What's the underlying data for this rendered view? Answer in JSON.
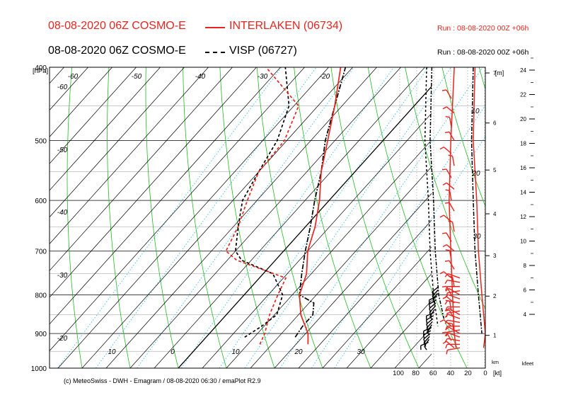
{
  "header": {
    "line1_run": "08-08-2020 06Z COSMO-E",
    "line1_station": "INTERLAKEN (06734)",
    "line1_info": "Run : 08-08-2020 00Z +06h",
    "line2_run": "08-08-2020 06Z COSMO-E",
    "line2_station": "VISP (06727)",
    "line2_info": "Run : 08-08-2020 00Z +06h"
  },
  "footer": {
    "credit": "(c) MeteoSwiss - DWH - Emagram / 08-08-2020  06:30 / emaPlot R2.9"
  },
  "colors": {
    "series_interlaken": "#e8251f",
    "series_visp": "#000000",
    "dry_adiabat": "#22bb22",
    "mixing_ratio": "#33bbee",
    "isotherm": "#000000"
  },
  "chart_data": {
    "type": "line",
    "title": "",
    "ylabel": "[hPa]",
    "pressure_levels": [
      1000,
      900,
      800,
      700,
      600,
      500,
      400
    ],
    "isotherm_labels": [
      {
        "text": "-60",
        "value": -60
      },
      {
        "text": "-50",
        "value": -50
      },
      {
        "text": "-40",
        "value": -40
      },
      {
        "text": "-30",
        "value": -30
      },
      {
        "text": "-20",
        "value": -20
      },
      {
        "text": "10",
        "value": 10
      },
      {
        "text": "20",
        "value": 20
      },
      {
        "text": "30",
        "value": 30
      }
    ],
    "adiabat_labels": [
      "-60",
      "-50",
      "-40",
      "-30",
      "-20"
    ],
    "zero_label": "0",
    "height_axis_km": {
      "unit": "[m]",
      "ticks": [
        "1",
        "2",
        "3",
        "4",
        "5",
        "6",
        "7"
      ]
    },
    "height_axis_kfeet": {
      "unit": "kfeet",
      "ticks": [
        "4",
        "6",
        "8",
        "10",
        "12",
        "14",
        "16",
        "18",
        "20",
        "22",
        "24"
      ]
    },
    "wind_axis": {
      "unit": "[kt]",
      "ticks": [
        "100",
        "80",
        "60",
        "40",
        "20",
        "0"
      ]
    },
    "wind_panel_labels": [
      "10",
      "20",
      "30"
    ],
    "km_label": "km",
    "series": [
      {
        "name": "INTERLAKEN (06734)",
        "temperature": [
          [
            930,
            22.5
          ],
          [
            900,
            20.5
          ],
          [
            850,
            15.5
          ],
          [
            800,
            11.5
          ],
          [
            750,
            9
          ],
          [
            700,
            5
          ],
          [
            650,
            2
          ],
          [
            600,
            -2
          ],
          [
            550,
            -7
          ],
          [
            500,
            -11.5
          ],
          [
            450,
            -16.5
          ],
          [
            400,
            -22.5
          ]
        ],
        "dewpoint": [
          [
            930,
            12.5
          ],
          [
            900,
            11.5
          ],
          [
            850,
            9
          ],
          [
            800,
            7
          ],
          [
            760,
            5.5
          ],
          [
            720,
            -8
          ],
          [
            700,
            -12
          ],
          [
            650,
            -14
          ],
          [
            600,
            -17
          ],
          [
            550,
            -20
          ],
          [
            500,
            -20.5
          ],
          [
            450,
            -24
          ],
          [
            400,
            -38
          ]
        ]
      },
      {
        "name": "VISP (06727)",
        "temperature": [
          [
            910,
            18.5
          ],
          [
            880,
            18
          ],
          [
            850,
            18
          ],
          [
            820,
            16
          ],
          [
            800,
            11.5
          ],
          [
            750,
            8
          ],
          [
            700,
            4.5
          ],
          [
            650,
            1
          ],
          [
            600,
            -3
          ],
          [
            550,
            -7
          ],
          [
            500,
            -12
          ],
          [
            450,
            -16.5
          ],
          [
            400,
            -21.5
          ]
        ],
        "dewpoint": [
          [
            910,
            8
          ],
          [
            880,
            9.5
          ],
          [
            850,
            10.5
          ],
          [
            800,
            8
          ],
          [
            750,
            2
          ],
          [
            720,
            -7
          ],
          [
            700,
            -10
          ],
          [
            650,
            -14
          ],
          [
            600,
            -18
          ],
          [
            550,
            -20
          ],
          [
            500,
            -22
          ],
          [
            450,
            -26
          ],
          [
            400,
            -34
          ]
        ]
      }
    ]
  }
}
